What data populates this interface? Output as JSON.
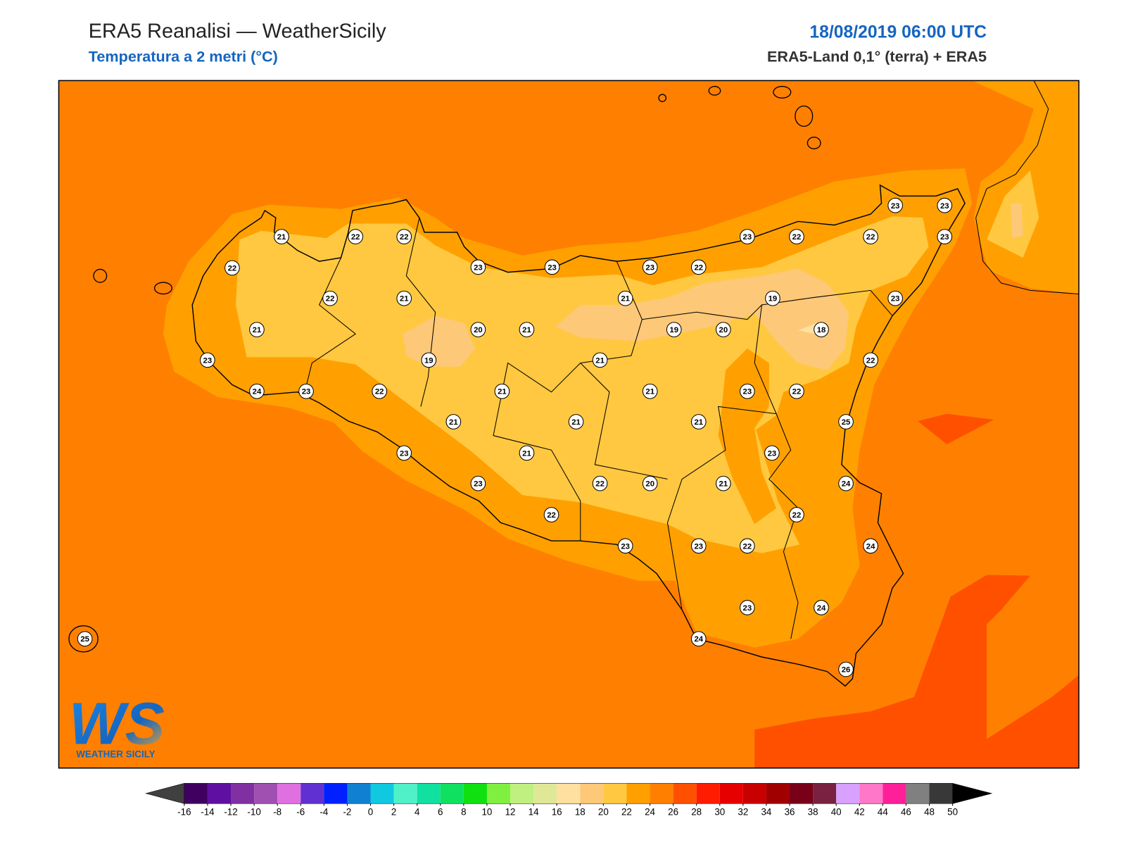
{
  "header": {
    "title": "ERA5 Reanalisi — WeatherSicily",
    "subtitle": "Temperatura a 2 metri (°C)",
    "date": "18/08/2019 06:00 UTC",
    "source": "ERA5-Land 0,1° (terra) + ERA5"
  },
  "stations": [
    21,
    22,
    22,
    22,
    23,
    23,
    23,
    22,
    23,
    22,
    22,
    23,
    23,
    23,
    22,
    21,
    21,
    19,
    23,
    21,
    20,
    21,
    19,
    20,
    18,
    23,
    19,
    21,
    22,
    24,
    23,
    22,
    21,
    21,
    23,
    22,
    21,
    21,
    21,
    25,
    23,
    21,
    23,
    23,
    22,
    20,
    21,
    24,
    22,
    22,
    23,
    23,
    22,
    24,
    23,
    24,
    24,
    25,
    26
  ],
  "colorbar": {
    "ticks": [
      -16,
      -14,
      -12,
      -10,
      -8,
      -6,
      -4,
      -2,
      0,
      2,
      4,
      6,
      8,
      10,
      12,
      14,
      16,
      18,
      20,
      22,
      24,
      26,
      28,
      30,
      32,
      34,
      36,
      38,
      40,
      42,
      44,
      46,
      48,
      50
    ],
    "colors": [
      "#400060",
      "#6010a0",
      "#8030a0",
      "#a050b0",
      "#e070e0",
      "#6030d0",
      "#0020ff",
      "#1080d0",
      "#10c8e0",
      "#50f0c8",
      "#10e0a0",
      "#10e060",
      "#10e010",
      "#80f040",
      "#c0f080",
      "#e0e898",
      "#ffe0a0",
      "#fdc878",
      "#ffc840",
      "#ffa000",
      "#ff8000",
      "#ff5000",
      "#ff1c00",
      "#e60000",
      "#c80000",
      "#a00000",
      "#780018",
      "#7a2040",
      "#d8a0ff",
      "#ff78c8",
      "#ff2099",
      "#808080",
      "#383838"
    ],
    "under_color": "#404040",
    "over_color": "#000000"
  },
  "logo": {
    "mark": "WS",
    "name": "WEATHER SICILY"
  }
}
